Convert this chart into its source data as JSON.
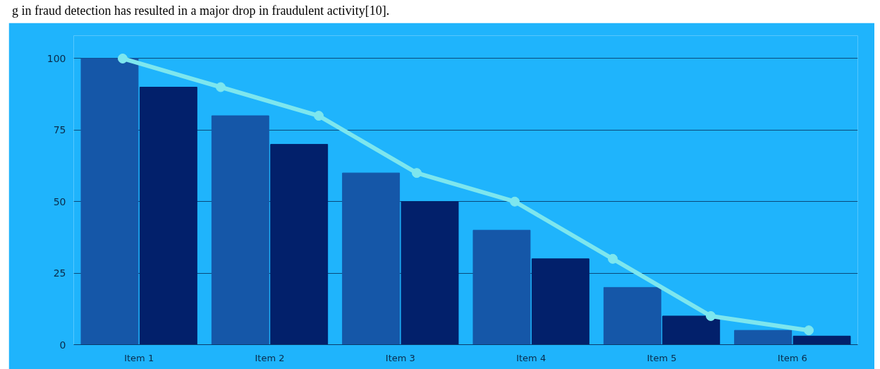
{
  "chart_data": [
    {
      "type": "bar",
      "categories": [
        "Item 1",
        "Item 2",
        "Item 3",
        "Item 4",
        "Item 5",
        "Item 6"
      ],
      "series": [
        {
          "color": "#1557a8",
          "values": [
            100,
            80,
            60,
            40,
            20,
            5
          ]
        },
        {
          "color": "#02206b",
          "values": [
            90,
            70,
            50,
            30,
            10,
            3
          ]
        }
      ],
      "ylim": [
        0,
        108
      ],
      "yticks": [
        0,
        25,
        50,
        75,
        100
      ],
      "grid": "y",
      "annotations": [
        "g in fraud detection has resulted in a major drop in fraudulent activity[10]."
      ]
    },
    {
      "type": "line",
      "categories": [
        null,
        null,
        null,
        null,
        null,
        null,
        null,
        null
      ],
      "series": [
        {
          "color": "#7de6ee",
          "values": [
            100,
            90,
            80,
            60,
            50,
            30,
            10,
            5
          ]
        }
      ],
      "ylim": [
        0,
        108
      ],
      "tick_labels": false,
      "marker": "circle"
    }
  ]
}
